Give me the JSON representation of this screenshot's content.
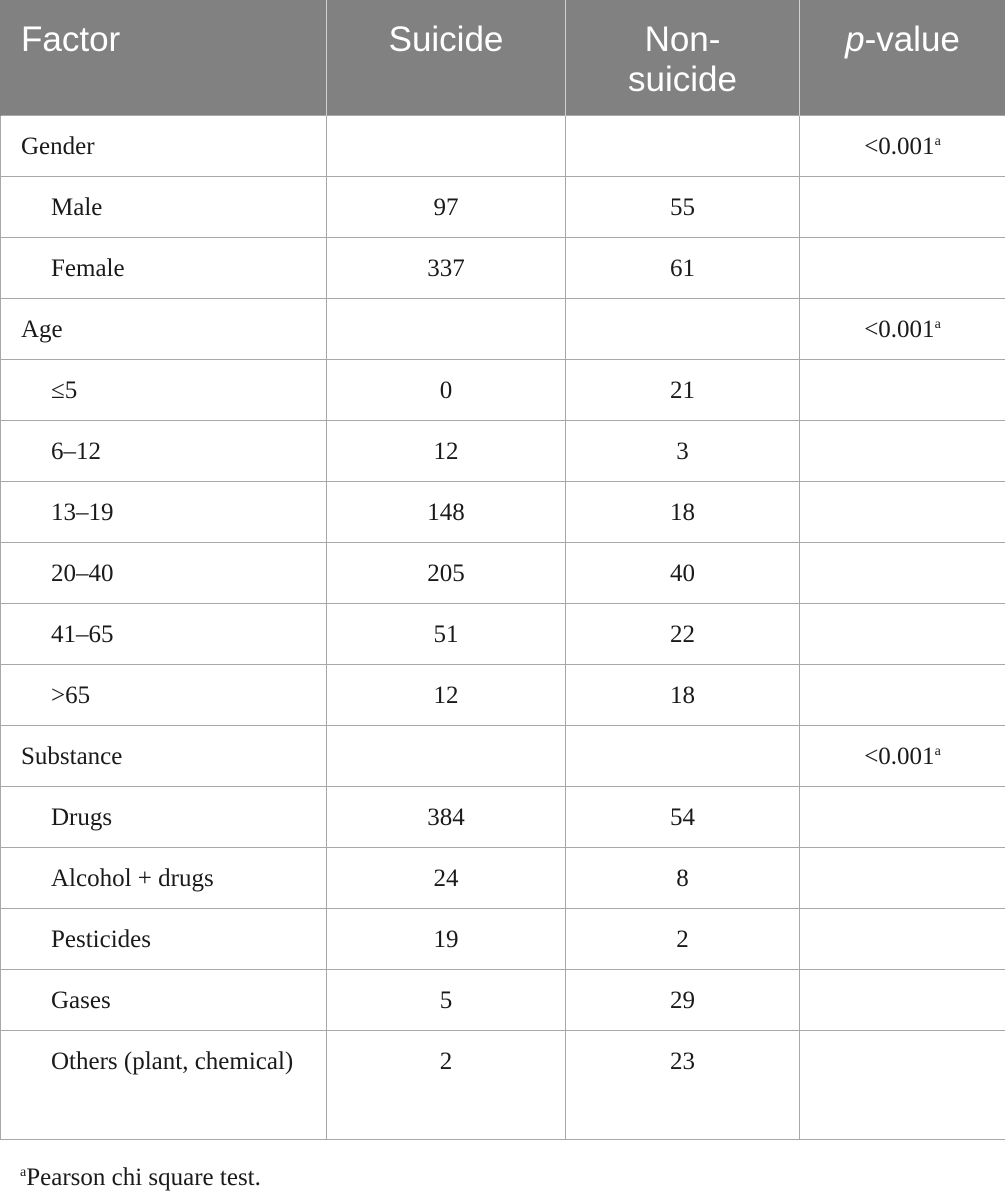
{
  "table": {
    "headers": {
      "factor": "Factor",
      "suicide": "Suicide",
      "nonsuicide": "Non-suicide",
      "pvalue_italic": "p",
      "pvalue_rest": "-value"
    },
    "rows": [
      {
        "factor": "Gender",
        "suicide": "",
        "nonsuicide": "",
        "pvalue": "<0.001",
        "sup": "a"
      },
      {
        "factor": "Male",
        "suicide": "97",
        "nonsuicide": "55",
        "pvalue": "",
        "sup": ""
      },
      {
        "factor": "Female",
        "suicide": "337",
        "nonsuicide": "61",
        "pvalue": "",
        "sup": ""
      },
      {
        "factor": "Age",
        "suicide": "",
        "nonsuicide": "",
        "pvalue": "<0.001",
        "sup": "a"
      },
      {
        "factor": "≤5",
        "suicide": "0",
        "nonsuicide": "21",
        "pvalue": "",
        "sup": ""
      },
      {
        "factor": "6–12",
        "suicide": "12",
        "nonsuicide": "3",
        "pvalue": "",
        "sup": ""
      },
      {
        "factor": "13–19",
        "suicide": "148",
        "nonsuicide": "18",
        "pvalue": "",
        "sup": ""
      },
      {
        "factor": "20–40",
        "suicide": "205",
        "nonsuicide": "40",
        "pvalue": "",
        "sup": ""
      },
      {
        "factor": "41–65",
        "suicide": "51",
        "nonsuicide": "22",
        "pvalue": "",
        "sup": ""
      },
      {
        "factor": ">65",
        "suicide": "12",
        "nonsuicide": "18",
        "pvalue": "",
        "sup": ""
      },
      {
        "factor": "Substance",
        "suicide": "",
        "nonsuicide": "",
        "pvalue": "<0.001",
        "sup": "a"
      },
      {
        "factor": "Drugs",
        "suicide": "384",
        "nonsuicide": "54",
        "pvalue": "",
        "sup": ""
      },
      {
        "factor": "Alcohol + drugs",
        "suicide": "24",
        "nonsuicide": "8",
        "pvalue": "",
        "sup": ""
      },
      {
        "factor": "Pesticides",
        "suicide": "19",
        "nonsuicide": "2",
        "pvalue": "",
        "sup": ""
      },
      {
        "factor": "Gases",
        "suicide": "5",
        "nonsuicide": "29",
        "pvalue": "",
        "sup": ""
      },
      {
        "factor": "Others (plant, chemical)",
        "suicide": "2",
        "nonsuicide": "23",
        "pvalue": "",
        "sup": ""
      }
    ]
  },
  "footnote": {
    "marker": "a",
    "text": "Pearson chi square test."
  },
  "colors": {
    "header_background": "#818181",
    "header_text": "#ffffff",
    "grid_line": "#a8a8a8"
  }
}
